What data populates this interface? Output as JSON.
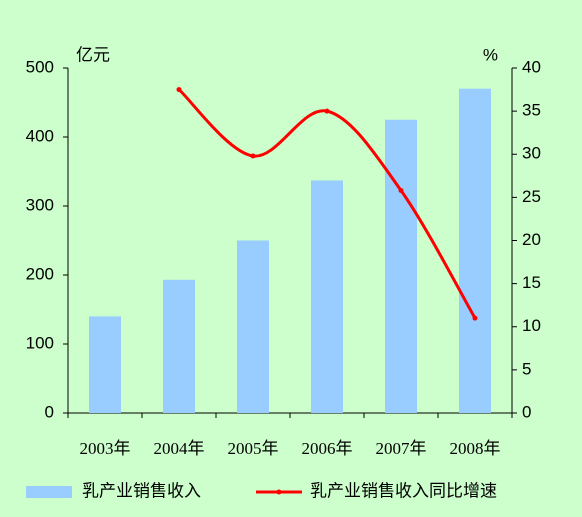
{
  "chart_data": {
    "type": "bar-line",
    "y_label": "亿元",
    "y2_label": "%",
    "categories": [
      "2003年",
      "2004年",
      "2005年",
      "2006年",
      "2007年",
      "2008年"
    ],
    "series": [
      {
        "name": "乳产业销售收入",
        "type": "bar",
        "color": "#99ccff",
        "values": [
          140,
          193,
          250,
          337,
          425,
          470
        ]
      },
      {
        "name": "乳产业销售收入同比增速",
        "type": "line",
        "axis": "y2",
        "color": "#ff0000",
        "values": [
          null,
          37.5,
          29.8,
          35,
          25.8,
          11
        ]
      }
    ],
    "ylim": [
      0,
      500
    ],
    "yticks": [
      0,
      100,
      200,
      300,
      400,
      500
    ],
    "y2lim": [
      0,
      40
    ],
    "y2ticks": [
      0,
      5,
      10,
      15,
      20,
      25,
      30,
      35,
      40
    ]
  }
}
